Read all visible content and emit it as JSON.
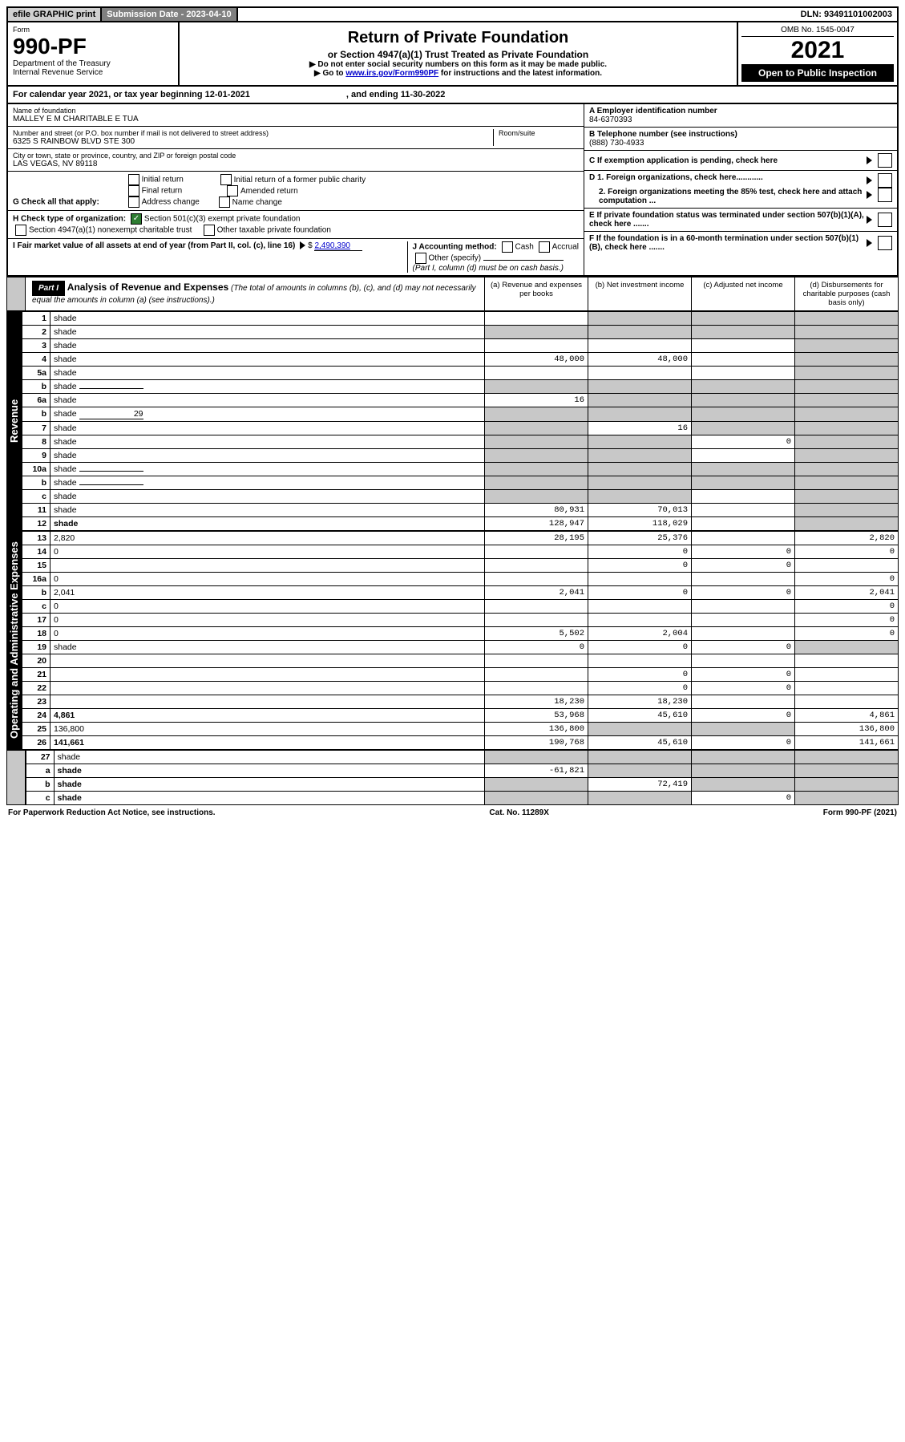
{
  "topbar": {
    "efile": "efile GRAPHIC print",
    "subdate_lbl": "Submission Date - 2023-04-10",
    "dln": "DLN: 93491101002003"
  },
  "header": {
    "form_lbl": "Form",
    "form_num": "990-PF",
    "dept": "Department of the Treasury",
    "irs": "Internal Revenue Service",
    "title": "Return of Private Foundation",
    "subtitle": "or Section 4947(a)(1) Trust Treated as Private Foundation",
    "note1": "▶ Do not enter social security numbers on this form as it may be made public.",
    "note2_pre": "▶ Go to ",
    "note2_link": "www.irs.gov/Form990PF",
    "note2_post": " for instructions and the latest information.",
    "omb": "OMB No. 1545-0047",
    "year": "2021",
    "open": "Open to Public Inspection"
  },
  "cal": {
    "text1": "For calendar year 2021, or tax year beginning 12-01-2021",
    "text2": ", and ending 11-30-2022"
  },
  "info": {
    "name_lbl": "Name of foundation",
    "name": "MALLEY E M CHARITABLE E TUA",
    "addr_lbl": "Number and street (or P.O. box number if mail is not delivered to street address)",
    "addr": "6325 S RAINBOW BLVD STE 300",
    "room_lbl": "Room/suite",
    "city_lbl": "City or town, state or province, country, and ZIP or foreign postal code",
    "city": "LAS VEGAS, NV  89118",
    "ein_lbl": "A Employer identification number",
    "ein": "84-6370393",
    "tel_lbl": "B Telephone number (see instructions)",
    "tel": "(888) 730-4933",
    "c_lbl": "C If exemption application is pending, check here",
    "d1": "D 1. Foreign organizations, check here............",
    "d2": "2. Foreign organizations meeting the 85% test, check here and attach computation ...",
    "e_lbl": "E  If private foundation status was terminated under section 507(b)(1)(A), check here .......",
    "f_lbl": "F  If the foundation is in a 60-month termination under section 507(b)(1)(B), check here .......",
    "g_lbl": "G Check all that apply:",
    "g_opts": [
      "Initial return",
      "Final return",
      "Address change",
      "Initial return of a former public charity",
      "Amended return",
      "Name change"
    ],
    "h_lbl": "H Check type of organization:",
    "h1": "Section 501(c)(3) exempt private foundation",
    "h2": "Section 4947(a)(1) nonexempt charitable trust",
    "h3": "Other taxable private foundation",
    "i_lbl": "I Fair market value of all assets at end of year (from Part II, col. (c), line 16)",
    "i_val": "2,490,390",
    "j_lbl": "J Accounting method:",
    "j_cash": "Cash",
    "j_accr": "Accrual",
    "j_other": "Other (specify)",
    "j_note": "(Part I, column (d) must be on cash basis.)"
  },
  "part1": {
    "hdr": "Part I",
    "title": "Analysis of Revenue and Expenses",
    "title_note": "(The total of amounts in columns (b), (c), and (d) may not necessarily equal the amounts in column (a) (see instructions).)",
    "col_a": "(a)   Revenue and expenses per books",
    "col_b": "(b)   Net investment income",
    "col_c": "(c)   Adjusted net income",
    "col_d": "(d)   Disbursements for charitable purposes (cash basis only)"
  },
  "side": {
    "rev": "Revenue",
    "exp": "Operating and Administrative Expenses"
  },
  "rows": [
    {
      "n": "1",
      "d": "shade",
      "a": "",
      "b": "shade",
      "c": "shade"
    },
    {
      "n": "2",
      "d": "shade",
      "a": "shade",
      "b": "shade",
      "c": "shade",
      "bold_not": true
    },
    {
      "n": "3",
      "d": "shade",
      "a": "",
      "b": "",
      "c": ""
    },
    {
      "n": "4",
      "d": "shade",
      "a": "48,000",
      "b": "48,000",
      "c": ""
    },
    {
      "n": "5a",
      "d": "shade",
      "a": "",
      "b": "",
      "c": ""
    },
    {
      "n": "b",
      "d": "shade",
      "a": "shade",
      "b": "shade",
      "c": "shade",
      "inline": ""
    },
    {
      "n": "6a",
      "d": "shade",
      "a": "16",
      "b": "shade",
      "c": "shade"
    },
    {
      "n": "b",
      "d": "shade",
      "a": "shade",
      "b": "shade",
      "c": "shade",
      "inline": "29"
    },
    {
      "n": "7",
      "d": "shade",
      "a": "shade",
      "b": "16",
      "c": "shade"
    },
    {
      "n": "8",
      "d": "shade",
      "a": "shade",
      "b": "shade",
      "c": "0"
    },
    {
      "n": "9",
      "d": "shade",
      "a": "shade",
      "b": "shade",
      "c": ""
    },
    {
      "n": "10a",
      "d": "shade",
      "a": "shade",
      "b": "shade",
      "c": "shade",
      "inline": ""
    },
    {
      "n": "b",
      "d": "shade",
      "a": "shade",
      "b": "shade",
      "c": "shade",
      "inline": ""
    },
    {
      "n": "c",
      "d": "shade",
      "a": "shade",
      "b": "shade",
      "c": ""
    },
    {
      "n": "11",
      "d": "shade",
      "a": "80,931",
      "b": "70,013",
      "c": ""
    },
    {
      "n": "12",
      "d": "shade",
      "a": "128,947",
      "b": "118,029",
      "c": "",
      "bold": true
    }
  ],
  "rows_exp": [
    {
      "n": "13",
      "d": "2,820",
      "a": "28,195",
      "b": "25,376",
      "c": ""
    },
    {
      "n": "14",
      "d": "0",
      "a": "",
      "b": "0",
      "c": "0"
    },
    {
      "n": "15",
      "d": "",
      "a": "",
      "b": "0",
      "c": "0"
    },
    {
      "n": "16a",
      "d": "0",
      "a": "",
      "b": "",
      "c": ""
    },
    {
      "n": "b",
      "d": "2,041",
      "a": "2,041",
      "b": "0",
      "c": "0"
    },
    {
      "n": "c",
      "d": "0",
      "a": "",
      "b": "",
      "c": ""
    },
    {
      "n": "17",
      "d": "0",
      "a": "",
      "b": "",
      "c": ""
    },
    {
      "n": "18",
      "d": "0",
      "a": "5,502",
      "b": "2,004",
      "c": ""
    },
    {
      "n": "19",
      "d": "shade",
      "a": "0",
      "b": "0",
      "c": "0"
    },
    {
      "n": "20",
      "d": "",
      "a": "",
      "b": "",
      "c": ""
    },
    {
      "n": "21",
      "d": "",
      "a": "",
      "b": "0",
      "c": "0"
    },
    {
      "n": "22",
      "d": "",
      "a": "",
      "b": "0",
      "c": "0"
    },
    {
      "n": "23",
      "d": "",
      "a": "18,230",
      "b": "18,230",
      "c": ""
    },
    {
      "n": "24",
      "d": "4,861",
      "a": "53,968",
      "b": "45,610",
      "c": "0",
      "bold": true
    },
    {
      "n": "25",
      "d": "136,800",
      "a": "136,800",
      "b": "shade",
      "c": "shade"
    },
    {
      "n": "26",
      "d": "141,661",
      "a": "190,768",
      "b": "45,610",
      "c": "0",
      "bold": true
    }
  ],
  "rows_bot": [
    {
      "n": "27",
      "d": "shade",
      "a": "shade",
      "b": "shade",
      "c": "shade"
    },
    {
      "n": "a",
      "d": "shade",
      "a": "-61,821",
      "b": "shade",
      "c": "shade",
      "bold": true
    },
    {
      "n": "b",
      "d": "shade",
      "a": "shade",
      "b": "72,419",
      "c": "shade",
      "bold": true
    },
    {
      "n": "c",
      "d": "shade",
      "a": "shade",
      "b": "shade",
      "c": "0",
      "bold": true
    }
  ],
  "footer": {
    "left": "For Paperwork Reduction Act Notice, see instructions.",
    "mid": "Cat. No. 11289X",
    "right": "Form 990-PF (2021)"
  },
  "colors": {
    "link": "#0000cc",
    "shade": "#c8c8c8",
    "check": "#2e7d32"
  }
}
